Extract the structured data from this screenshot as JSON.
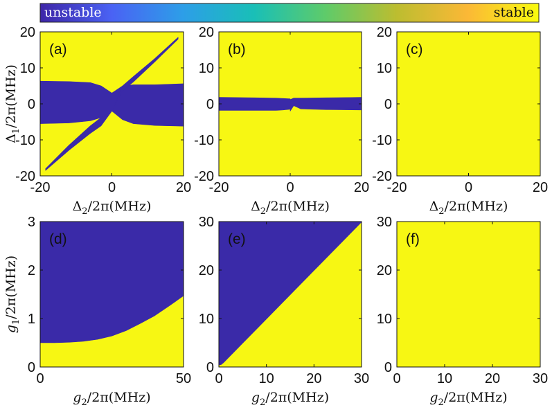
{
  "colorbar": {
    "left_label": "unstable",
    "right_label": "stable",
    "colors": [
      "#3e26a8",
      "#4a62f4",
      "#2d9ee8",
      "#19bfb7",
      "#5ecb6a",
      "#bcbd30",
      "#fbb836",
      "#f9fb0e"
    ]
  },
  "colors": {
    "unstable": "#3a2aa8",
    "stable": "#f7f713",
    "axis": "#111111"
  },
  "chart_data": [
    {
      "type": "heatmap",
      "panel_label": "(a)",
      "xlabel": "Δ2/2π(MHz)",
      "ylabel": "Δ1/2π(MHz)",
      "xlim": [
        -20,
        20
      ],
      "ylim": [
        -20,
        20
      ],
      "xticks": [
        -20,
        0,
        20
      ],
      "yticks": [
        -20,
        -10,
        0,
        10,
        20
      ],
      "unstable_regions": [
        {
          "shape": "band",
          "x": [
            -20,
            -12,
            -6,
            -3,
            0,
            3,
            6,
            12,
            20
          ],
          "upper": [
            6.3,
            6.2,
            5.9,
            5.0,
            3.0,
            5.0,
            5.3,
            5.3,
            5.6
          ],
          "lower": [
            -5.5,
            -5.3,
            -4.7,
            -3.8,
            -2.0,
            -4.4,
            -5.5,
            -6.0,
            -6.2
          ]
        },
        {
          "shape": "wedge",
          "x": [
            -18.5,
            -12,
            -6,
            -3,
            0,
            3,
            6,
            12,
            18.5
          ],
          "upper": [
            -18.0,
            -11.5,
            -6.1,
            -3.8,
            -2.0,
            5.0,
            7.6,
            12.6,
            18.5
          ],
          "lower": [
            -18.5,
            -12.9,
            -8.2,
            -6.1,
            -2.0,
            3.6,
            6.1,
            11.7,
            18.0
          ]
        }
      ]
    },
    {
      "type": "heatmap",
      "panel_label": "(b)",
      "xlabel": "Δ2/2π(MHz)",
      "ylabel": "",
      "xlim": [
        -20,
        20
      ],
      "ylim": [
        -20,
        20
      ],
      "xticks": [
        -20,
        0,
        20
      ],
      "yticks": [
        -20,
        -10,
        0,
        10,
        20
      ],
      "unstable_regions": [
        {
          "shape": "band",
          "x": [
            -20,
            -10,
            -4,
            -2,
            0
          ],
          "upper": [
            1.8,
            1.7,
            1.6,
            1.5,
            1.4
          ],
          "lower": [
            -1.8,
            -1.8,
            -1.8,
            -1.7,
            -1.5
          ]
        },
        {
          "shape": "band",
          "x": [
            0,
            1,
            3,
            10,
            20
          ],
          "upper": [
            1.2,
            1.6,
            1.6,
            1.7,
            1.8
          ],
          "lower": [
            -2.0,
            -0.5,
            -1.4,
            -1.6,
            -1.7
          ]
        }
      ]
    },
    {
      "type": "heatmap",
      "panel_label": "(c)",
      "xlabel": "Δ2/2π(MHz)",
      "ylabel": "",
      "xlim": [
        -20,
        20
      ],
      "ylim": [
        -20,
        20
      ],
      "xticks": [
        -20,
        0,
        20
      ],
      "yticks": [
        -20,
        -10,
        0,
        10,
        20
      ],
      "unstable_regions": []
    },
    {
      "type": "heatmap",
      "panel_label": "(d)",
      "xlabel": "g2/2π(MHz)",
      "ylabel": "g1/2π(MHz)",
      "xlim": [
        0,
        50
      ],
      "ylim": [
        0,
        3
      ],
      "xticks": [
        0,
        50
      ],
      "yticks": [
        0,
        1,
        2,
        3
      ],
      "unstable_regions": [
        {
          "shape": "above_curve",
          "x": [
            0,
            5,
            10,
            15,
            20,
            25,
            30,
            35,
            40,
            45,
            50
          ],
          "boundary": [
            0.5,
            0.5,
            0.51,
            0.53,
            0.57,
            0.64,
            0.75,
            0.9,
            1.06,
            1.26,
            1.47
          ]
        }
      ]
    },
    {
      "type": "heatmap",
      "panel_label": "(e)",
      "xlabel": "g2/2π(MHz)",
      "ylabel": "",
      "xlim": [
        0,
        30
      ],
      "ylim": [
        0,
        30
      ],
      "xticks": [
        0,
        10,
        20,
        30
      ],
      "yticks": [
        0,
        10,
        20,
        30
      ],
      "unstable_regions": [
        {
          "shape": "above_curve",
          "x": [
            0,
            0.5,
            1,
            2,
            5,
            10,
            20,
            30
          ],
          "boundary": [
            0.4,
            0.5,
            0.9,
            1.9,
            4.9,
            9.9,
            19.9,
            29.9
          ]
        }
      ]
    },
    {
      "type": "heatmap",
      "panel_label": "(f)",
      "xlabel": "g2/2π(MHz)",
      "ylabel": "",
      "xlim": [
        0,
        30
      ],
      "ylim": [
        0,
        30
      ],
      "xticks": [
        0,
        10,
        20,
        30
      ],
      "yticks": [
        0,
        10,
        20,
        30
      ],
      "unstable_regions": []
    }
  ]
}
